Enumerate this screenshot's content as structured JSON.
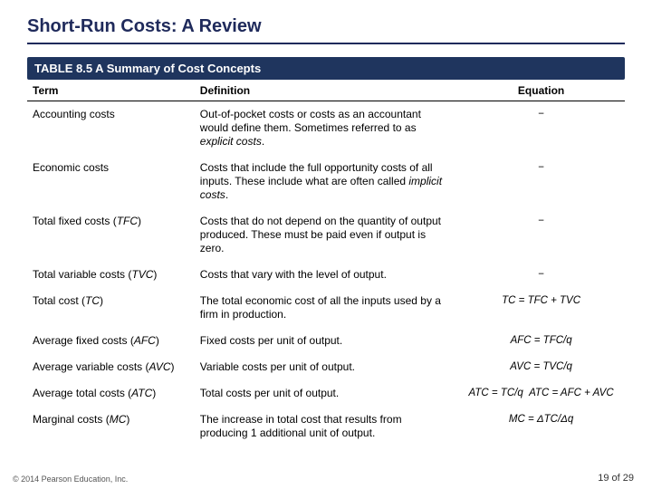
{
  "title": "Short-Run Costs: A Review",
  "table_title": "TABLE 8.5 A Summary of Cost Concepts",
  "headers": {
    "term": "Term",
    "definition": "Definition",
    "equation": "Equation"
  },
  "rows": [
    {
      "term_html": "Accounting costs",
      "def_html": "Out-of-pocket costs or costs as an accountant would define them. Sometimes referred to as <em>explicit costs</em>.",
      "eq_html": "<span class='dash'>−</span>"
    },
    {
      "term_html": "Economic costs",
      "def_html": "Costs that include the full opportunity costs of all inputs. These include what are often called <em>implicit costs</em>.",
      "eq_html": "<span class='dash'>−</span>"
    },
    {
      "term_html": "Total fixed costs (<span class='abbr'>TFC</span>)",
      "def_html": "Costs that do not depend on the quantity of output produced. These must be paid even if output is zero.",
      "eq_html": "<span class='dash'>−</span>"
    },
    {
      "term_html": "Total variable costs (<span class='abbr'>TVC</span>)",
      "def_html": "Costs that vary with the level of output.",
      "eq_html": "<span class='dash'>−</span>"
    },
    {
      "term_html": "Total cost (<span class='abbr'>TC</span>)",
      "def_html": "The total economic cost of all the inputs used by a firm in production.",
      "eq_html": "TC = TFC + TVC"
    },
    {
      "term_html": "Average fixed costs (<span class='abbr'>AFC</span>)",
      "def_html": "Fixed costs per unit of output.",
      "eq_html": "AFC = TFC/q"
    },
    {
      "term_html": "Average variable costs (<span class='abbr'>AVC</span>)",
      "def_html": "Variable costs per unit of output.",
      "eq_html": "AVC = TVC/q"
    },
    {
      "term_html": "Average total costs (<span class='abbr'>ATC</span>)",
      "def_html": "Total costs per unit of output.",
      "eq_html": "ATC = TC/q &nbsp;ATC = AFC + AVC"
    },
    {
      "term_html": "Marginal costs (<span class='abbr'>MC</span>)",
      "def_html": "The increase in total cost that results from producing 1 additional unit of output.",
      "eq_html": "MC = ΔTC/Δq"
    }
  ],
  "footer": "© 2014 Pearson Education, Inc.",
  "page": "19 of 29",
  "col_widths": {
    "term": "28%",
    "def": "44%",
    "eq": "28%"
  },
  "colors": {
    "title": "#1f2a5b",
    "head_bg": "#1f355e",
    "head_fg": "#ffffff",
    "rule": "#000000"
  }
}
